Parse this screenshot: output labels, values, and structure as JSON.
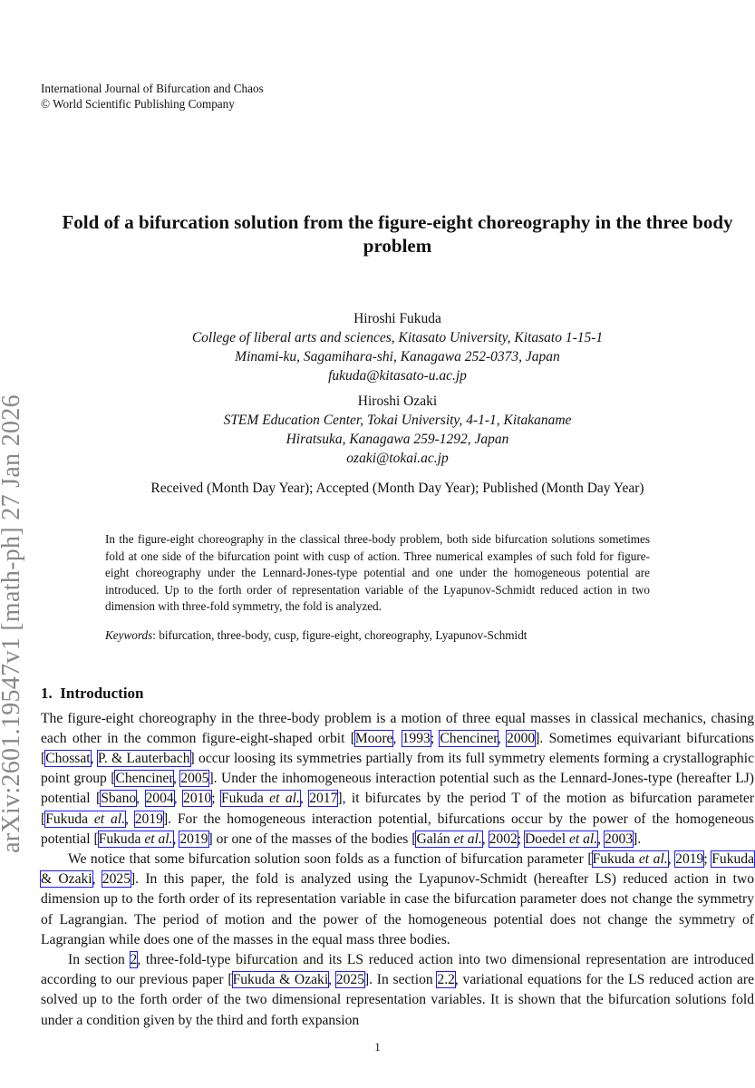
{
  "journal": {
    "name": "International Journal of Bifurcation and Chaos",
    "copyright": "© World Scientific Publishing Company"
  },
  "title": "Fold of a bifurcation solution from the figure-eight choreography in the three body problem",
  "authors": [
    {
      "name": "Hiroshi Fukuda",
      "affiliation": [
        "College of liberal arts and sciences, Kitasato University, Kitasato 1-15-1",
        "Minami-ku, Sagamihara-shi, Kanagawa 252-0373, Japan"
      ],
      "email": "fukuda@kitasato-u.ac.jp"
    },
    {
      "name": "Hiroshi Ozaki",
      "affiliation": [
        "STEM Education Center, Tokai University, 4-1-1, Kitakaname",
        "Hiratsuka, Kanagawa 259-1292, Japan"
      ],
      "email": "ozaki@tokai.ac.jp"
    }
  ],
  "dates": "Received (Month Day Year); Accepted (Month Day Year); Published (Month Day Year)",
  "abstract": "In the figure-eight choreography in the classical three-body problem, both side bifurcation solutions sometimes fold at one side of the bifurcation point with cusp of action. Three numerical examples of such fold for figure-eight choreography under the Lennard-Jones-type potential and one under the homogeneous potential are introduced. Up to the forth order of representation variable of the Lyapunov-Schmidt reduced action in two dimension with three-fold symmetry, the fold is analyzed.",
  "keywords": {
    "label": "Keywords",
    "text": ": bifurcation, three-body, cusp, figure-eight, choreography, Lyapunov-Schmidt"
  },
  "section": {
    "number": "1.",
    "title": "Introduction"
  },
  "paragraphs": [
    [
      {
        "t": "The figure-eight choreography in the three-body problem is a motion of three equal masses in classical mechanics, chasing each other in the common figure-eight-shaped orbit ["
      },
      {
        "c": "Moore"
      },
      {
        "t": ", "
      },
      {
        "c": "1993"
      },
      {
        "t": "; "
      },
      {
        "c": "Chenciner"
      },
      {
        "t": ", "
      },
      {
        "c": "2000"
      },
      {
        "t": "]. Sometimes equivariant bifurcations ["
      },
      {
        "c": "Chossat"
      },
      {
        "t": ", "
      },
      {
        "c": "P. & Lauterbach"
      },
      {
        "t": "] occur loosing its symmetries partially from its full symmetry elements forming a crystallographic point group ["
      },
      {
        "c": "Chenciner"
      },
      {
        "t": ", "
      },
      {
        "c": "2005"
      },
      {
        "t": "]. Under the inhomogeneous interaction potential such as the Lennard-Jones-type (hereafter LJ) potential ["
      },
      {
        "c": "Sbano"
      },
      {
        "t": ", "
      },
      {
        "c": "2004"
      },
      {
        "t": ", "
      },
      {
        "c": "2010"
      },
      {
        "t": "; "
      },
      {
        "c": "Fukuda et al."
      },
      {
        "t": ", "
      },
      {
        "c": "2017"
      },
      {
        "t": "], it bifurcates by the period T of the motion as bifurcation parameter ["
      },
      {
        "c": "Fukuda et al."
      },
      {
        "t": ", "
      },
      {
        "c": "2019"
      },
      {
        "t": "]. For the homogeneous interaction potential, bifurcations occur by the power of the homogeneous potential ["
      },
      {
        "c": "Fukuda et al."
      },
      {
        "t": ", "
      },
      {
        "c": "2019"
      },
      {
        "t": "] or one of the masses of the bodies ["
      },
      {
        "c": "Galán et al."
      },
      {
        "t": ", "
      },
      {
        "c": "2002"
      },
      {
        "t": "; "
      },
      {
        "c": "Doedel et al."
      },
      {
        "t": ", "
      },
      {
        "c": "2003"
      },
      {
        "t": "]."
      }
    ],
    [
      {
        "t": "We notice that some bifurcation solution soon folds as a function of bifurcation parameter ["
      },
      {
        "c": "Fukuda et al."
      },
      {
        "t": ", "
      },
      {
        "c": "2019"
      },
      {
        "t": "; "
      },
      {
        "c": "Fukuda & Ozaki"
      },
      {
        "t": ", "
      },
      {
        "c": "2025"
      },
      {
        "t": "]. In this paper, the fold is analyzed using the Lyapunov-Schmidt (hereafter LS) reduced action in two dimension up to the forth order of its representation variable in case the bifurcation parameter does not change the symmetry of Lagrangian. The period of motion and the power of the homogeneous potential does not change the symmetry of Lagrangian while does one of the masses in the equal mass three bodies."
      }
    ],
    [
      {
        "t": "In section "
      },
      {
        "c": "2"
      },
      {
        "t": ", three-fold-type bifurcation and its LS reduced action into two dimensional representation are introduced according to our previous paper ["
      },
      {
        "c": "Fukuda & Ozaki"
      },
      {
        "t": ", "
      },
      {
        "c": "2025"
      },
      {
        "t": "]. In section "
      },
      {
        "c": "2.2"
      },
      {
        "t": ", variational equations for the LS reduced action are solved up to the forth order of the two dimensional representation variables. It is shown that the bifurcation solutions fold under a condition given by the third and forth expansion"
      }
    ]
  ],
  "arxiv_id": "arXiv:2601.19547v1  [math-ph]  27 Jan 2026",
  "page_number": "1",
  "colors": {
    "citation_box": "#1a1aff",
    "arxiv_stamp": "#888888"
  }
}
